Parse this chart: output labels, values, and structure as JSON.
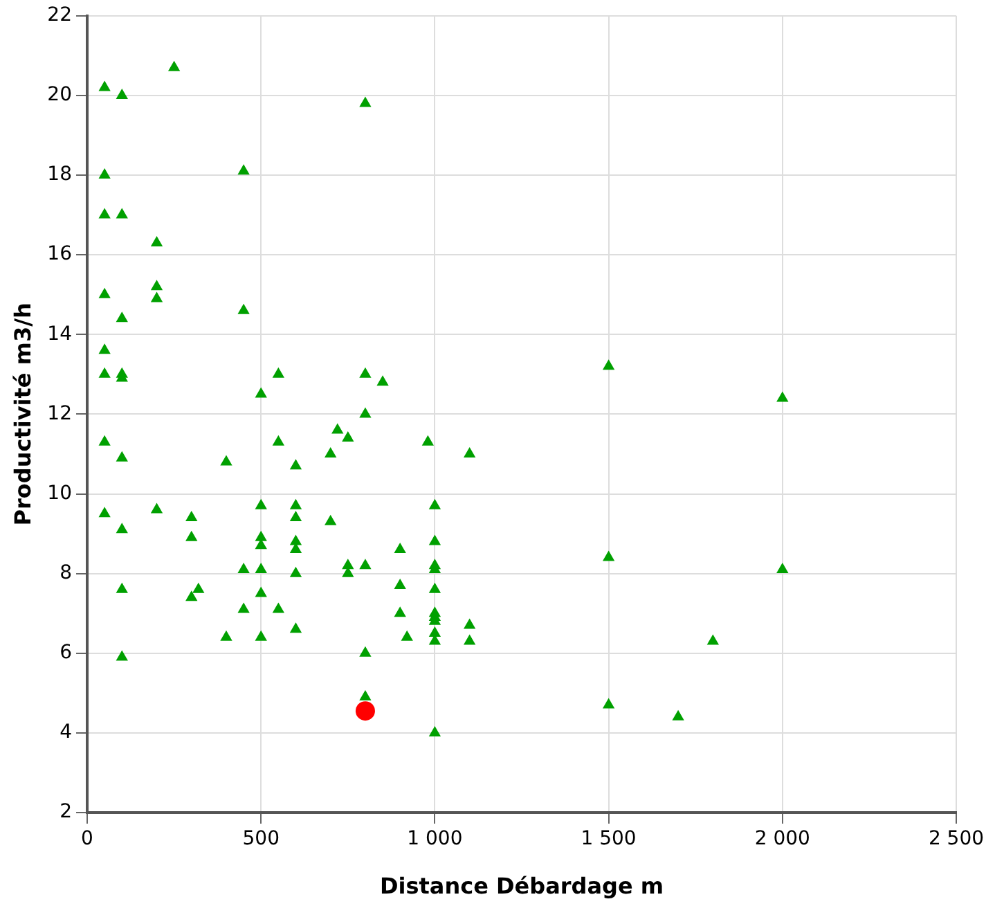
{
  "chart_data": {
    "type": "scatter",
    "xlabel": "Distance Débardage m",
    "ylabel": "Productivité m3/h",
    "xlim": [
      0,
      2500
    ],
    "xticks": [
      0,
      500,
      {
        "value": 1000,
        "label": "1 000"
      },
      {
        "value": 1500,
        "label": "1 500"
      },
      {
        "value": 2000,
        "label": "2 000"
      },
      {
        "value": 2500,
        "label": "2 500"
      }
    ],
    "ylim": [
      2,
      22
    ],
    "yticks": [
      2,
      4,
      6,
      8,
      10,
      12,
      14,
      16,
      18,
      20,
      22
    ],
    "grid": true,
    "legend": false,
    "series": [
      {
        "color": "#00a000",
        "marker": "triangle",
        "x": [
          50,
          50,
          50,
          50,
          50,
          50,
          50,
          50,
          100,
          100,
          100,
          100,
          100,
          100,
          100,
          100,
          100,
          250,
          200,
          200,
          200,
          200,
          450,
          450,
          450,
          450,
          800,
          800,
          800,
          800,
          800,
          800,
          550,
          550,
          550,
          850,
          500,
          500,
          500,
          500,
          500,
          500,
          500,
          400,
          400,
          300,
          300,
          300,
          320,
          600,
          600,
          600,
          600,
          600,
          600,
          600,
          720,
          750,
          750,
          750,
          700,
          700,
          980,
          1100,
          1100,
          1100,
          1000,
          1000,
          1000,
          1000,
          1000,
          1000,
          1000,
          1000,
          1000,
          1000,
          1000,
          900,
          900,
          900,
          920,
          1500,
          1500,
          1500,
          2000,
          2000,
          1800,
          1700
        ],
        "values": [
          20.2,
          18,
          17,
          15,
          13.6,
          13,
          11.3,
          9.5,
          20,
          17,
          14.4,
          13,
          12.9,
          10.9,
          9.1,
          7.6,
          5.9,
          20.7,
          16.3,
          15.2,
          14.9,
          9.6,
          18.1,
          14.6,
          8.1,
          7.1,
          19.8,
          13,
          12,
          8.2,
          6,
          4.9,
          13,
          11.3,
          7.1,
          12.8,
          12.5,
          9.7,
          8.9,
          8.7,
          8.1,
          7.5,
          6.4,
          10.8,
          6.4,
          9.4,
          8.9,
          7.4,
          7.6,
          10.7,
          9.7,
          9.4,
          8.8,
          8.6,
          8,
          6.6,
          11.6,
          11.4,
          8.2,
          8,
          11,
          9.3,
          11.3,
          11,
          6.7,
          6.3,
          9.7,
          8.8,
          8.2,
          8.1,
          7.6,
          7,
          6.9,
          6.8,
          6.5,
          6.3,
          4,
          8.6,
          7.7,
          7,
          6.4,
          13.2,
          8.4,
          4.7,
          12.4,
          8.1,
          6.3,
          4.4
        ]
      },
      {
        "color": "#ff0000",
        "marker": "circle",
        "x": [
          800
        ],
        "values": [
          4.55
        ]
      }
    ]
  }
}
